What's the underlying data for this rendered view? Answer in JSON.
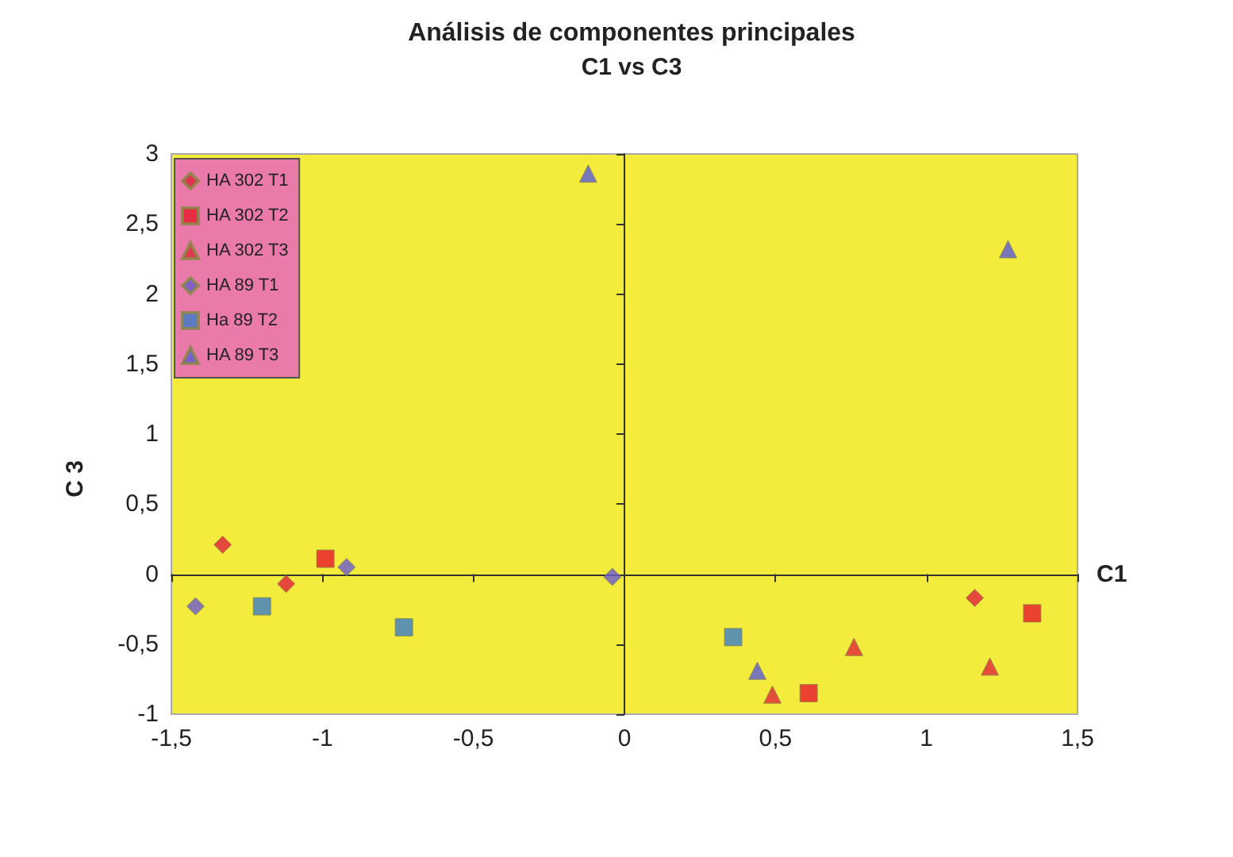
{
  "chart_data": {
    "type": "scatter",
    "title": "Análisis de componentes principales",
    "subtitle": "C1 vs C3",
    "xlabel": "C1",
    "ylabel": "C 3",
    "series": [
      {
        "name": "HA 302 T1",
        "color": "#e0203c",
        "marker": "diamond",
        "x": [
          -1.33,
          -1.12,
          1.16
        ],
        "values": [
          0.21,
          -0.07,
          -0.17
        ]
      },
      {
        "name": "HA 302 T2",
        "color": "#e8182c",
        "marker": "square",
        "x": [
          -0.99,
          1.35,
          0.61
        ],
        "values": [
          0.11,
          -0.28,
          -0.85
        ]
      },
      {
        "name": "HA 302 T3",
        "color": "#e02838",
        "marker": "triangle",
        "x": [
          0.76,
          0.49,
          1.21
        ],
        "values": [
          -0.52,
          -0.86,
          -0.66
        ]
      },
      {
        "name": "HA 89 T1",
        "color": "#6a5ad0",
        "marker": "diamond",
        "x": [
          -0.92,
          -0.04,
          -1.42
        ],
        "values": [
          0.05,
          -0.02,
          -0.23
        ]
      },
      {
        "name": "Ha 89 T2",
        "color": "#3a7cc8",
        "marker": "square",
        "x": [
          -1.2,
          -0.73,
          0.36
        ],
        "values": [
          -0.23,
          -0.38,
          -0.45
        ]
      },
      {
        "name": "HA 89 T3",
        "color": "#5a5ad8",
        "marker": "triangle",
        "x": [
          -0.12,
          1.27,
          0.44
        ],
        "values": [
          2.86,
          2.32,
          -0.69
        ]
      }
    ],
    "xlim": [
      -1.5,
      1.5
    ],
    "ylim": [
      -1,
      3
    ],
    "xticks": [
      {
        "value": -1.5,
        "label": "-1,5"
      },
      -1,
      {
        "value": -0.5,
        "label": "-0,5"
      },
      0,
      {
        "value": 0.5,
        "label": "0,5"
      },
      1,
      {
        "value": 1.5,
        "label": "1,5"
      }
    ],
    "yticks": [
      -1,
      {
        "value": -0.5,
        "label": "-0,5"
      },
      0,
      {
        "value": 0.5,
        "label": "0,5"
      },
      1,
      {
        "value": 1.5,
        "label": "1,5"
      },
      2,
      {
        "value": 2.5,
        "label": "2,5"
      },
      3
    ],
    "legend": "top left"
  }
}
